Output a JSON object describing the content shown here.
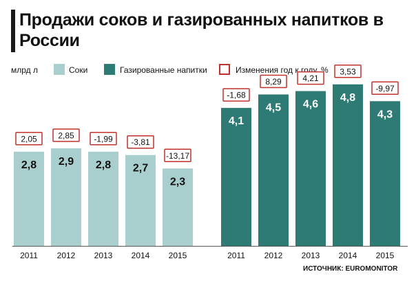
{
  "title": "Продажи соков и газированных напитков в России",
  "legend": {
    "unit": "млрд л",
    "juice": "Соки",
    "soda": "Газированные напитки",
    "change": "Изменения год к году, %"
  },
  "colors": {
    "juice": "#a9cece",
    "soda": "#2e7a74",
    "change_border": "#c0312b",
    "background": "#ffffff"
  },
  "source": "ИСТОЧНИК: EUROMONITOR",
  "chart_data": [
    {
      "type": "bar",
      "series": [
        {
          "name": "Соки",
          "values": [
            2.8,
            2.9,
            2.8,
            2.7,
            2.3
          ]
        }
      ],
      "categories": [
        "2011",
        "2012",
        "2013",
        "2014",
        "2015"
      ],
      "value_labels": [
        "2,8",
        "2,9",
        "2,8",
        "2,7",
        "2,3"
      ],
      "change_labels": [
        "2,05",
        "2,85",
        "-1,99",
        "-3,81",
        "-13,17"
      ]
    },
    {
      "type": "bar",
      "series": [
        {
          "name": "Газированные напитки",
          "values": [
            4.1,
            4.5,
            4.6,
            4.8,
            4.3
          ]
        }
      ],
      "categories": [
        "2011",
        "2012",
        "2013",
        "2014",
        "2015"
      ],
      "value_labels": [
        "4,1",
        "4,5",
        "4,6",
        "4,8",
        "4,3"
      ],
      "change_labels": [
        "-1,68",
        "8,29",
        "4,21",
        "3,53",
        "-9,97"
      ]
    }
  ]
}
